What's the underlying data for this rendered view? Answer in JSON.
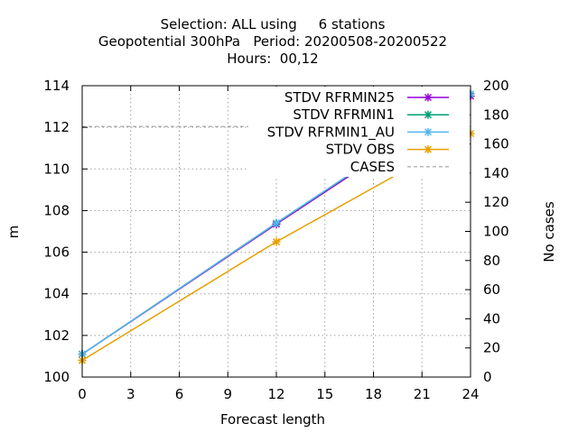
{
  "chart_data": {
    "type": "line",
    "title_lines": [
      "Selection: ALL using     6 stations",
      "Geopotential 300hPa   Period: 20200508-20200522",
      "Hours:  00,12"
    ],
    "xlabel": "Forecast length",
    "ylabel": "m",
    "y2label": "No cases",
    "xlim": [
      0,
      24
    ],
    "ylim": [
      100,
      114
    ],
    "y2lim": [
      0,
      200
    ],
    "xticks": [
      0,
      3,
      6,
      9,
      12,
      15,
      18,
      21,
      24
    ],
    "yticks": [
      100,
      102,
      104,
      106,
      108,
      110,
      112,
      114
    ],
    "y2ticks": [
      0,
      20,
      40,
      60,
      80,
      100,
      120,
      140,
      160,
      180,
      200
    ],
    "grid": true,
    "legend_position": "top-right",
    "series": [
      {
        "name": "STDV RFRMIN25",
        "color": "#9400d3",
        "marker": "x",
        "axis": "y1",
        "x": [
          0,
          12,
          24
        ],
        "values": [
          101.1,
          107.35,
          113.5
        ]
      },
      {
        "name": "STDV RFRMIN1",
        "color": "#009e73",
        "marker": "x",
        "axis": "y1",
        "x": [
          0,
          12,
          24
        ],
        "values": [
          101.1,
          107.4,
          113.6
        ]
      },
      {
        "name": "STDV RFRMIN1_AU",
        "color": "#56b4e9",
        "marker": "x",
        "axis": "y1",
        "x": [
          0,
          12,
          24
        ],
        "values": [
          101.1,
          107.4,
          113.6
        ]
      },
      {
        "name": "STDV OBS",
        "color": "#e69f00",
        "marker": "x",
        "axis": "y1",
        "x": [
          0,
          12,
          24
        ],
        "values": [
          100.8,
          106.5,
          111.7
        ]
      },
      {
        "name": "CASES",
        "color": "#a0a0a0",
        "marker": "none",
        "axis": "y2",
        "dashed": true,
        "x": [
          0,
          12,
          24
        ],
        "values": [
          172,
          172,
          172
        ]
      }
    ]
  }
}
